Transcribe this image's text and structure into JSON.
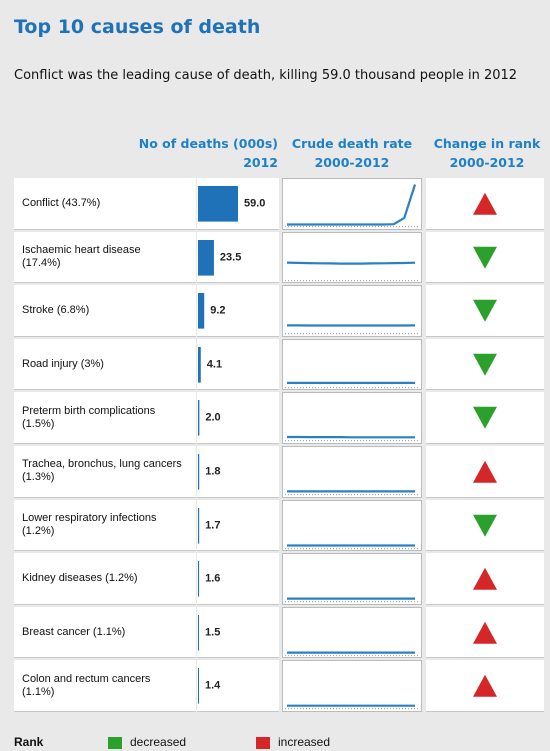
{
  "chart_data": {
    "type": "bar",
    "title": "Top 10 causes of death",
    "subtitle": "Conflict was the leading cause of death, killing 59.0 thousand people in 2012",
    "headers": [
      [
        "No of deaths (000s)",
        "2012"
      ],
      [
        "Crude death rate",
        "2000-2012"
      ],
      [
        "Change in rank",
        "2000-2012"
      ]
    ],
    "categories": [
      "Conflict (43.7%)",
      "Ischaemic heart disease (17.4%)",
      "Stroke (6.8%)",
      "Road injury (3%)",
      "Preterm birth complications (1.5%)",
      "Trachea, bronchus, lung cancers (1.3%)",
      "Lower respiratory infections (1.2%)",
      "Kidney diseases (1.2%)",
      "Breast cancer (1.1%)",
      "Colon and rectum cancers (1.1%)"
    ],
    "values": [
      59.0,
      23.5,
      9.2,
      4.1,
      2.0,
      1.8,
      1.7,
      1.6,
      1.5,
      1.4
    ],
    "value_labels": [
      "59.0",
      "23.5",
      "9.2",
      "4.1",
      "2.0",
      "1.8",
      "1.7",
      "1.6",
      "1.5",
      "1.4"
    ],
    "color": "#1f72b8",
    "trend_ylim": [
      0,
      280
    ],
    "trend_color": "#2a80c4",
    "trends": [
      [
        1,
        1,
        1,
        1,
        1,
        1,
        1,
        1,
        1,
        1,
        3,
        45,
        270
      ],
      [
        108,
        106,
        104,
        103,
        102,
        101,
        101,
        101,
        102,
        103,
        104,
        105,
        107
      ],
      [
        42,
        42,
        41,
        41,
        41,
        41,
        41,
        41,
        41,
        41,
        41,
        41,
        42
      ],
      [
        18,
        18,
        18,
        18,
        18,
        18,
        18,
        18,
        18,
        18,
        18,
        18,
        18
      ],
      [
        11,
        11,
        10,
        10,
        10,
        10,
        9,
        9,
        9,
        9,
        9,
        9,
        9
      ],
      [
        8,
        8,
        8,
        8,
        8,
        8,
        8,
        8,
        8,
        8,
        8,
        8,
        8
      ],
      [
        7.5,
        7.5,
        7.5,
        7.5,
        7.5,
        7.5,
        7.5,
        7.5,
        7.5,
        7.5,
        7.5,
        7.5,
        7.5
      ],
      [
        7,
        7,
        7,
        7,
        7,
        7,
        7,
        7,
        7,
        7,
        7,
        7,
        7
      ],
      [
        6.5,
        6.5,
        6.5,
        6.5,
        6.5,
        6.5,
        6.5,
        6.5,
        6.5,
        6.5,
        6.5,
        6.5,
        6.5
      ],
      [
        6,
        6,
        6,
        6,
        6,
        6,
        6,
        6,
        6,
        6,
        6,
        6,
        6
      ]
    ],
    "rank_change": [
      "increased",
      "decreased",
      "decreased",
      "decreased",
      "decreased",
      "increased",
      "decreased",
      "increased",
      "increased",
      "increased"
    ],
    "legend_title": "Rank",
    "legend": [
      {
        "label": "decreased",
        "color": "#2ca02c"
      },
      {
        "label": "increased",
        "color": "#d62728"
      }
    ]
  }
}
